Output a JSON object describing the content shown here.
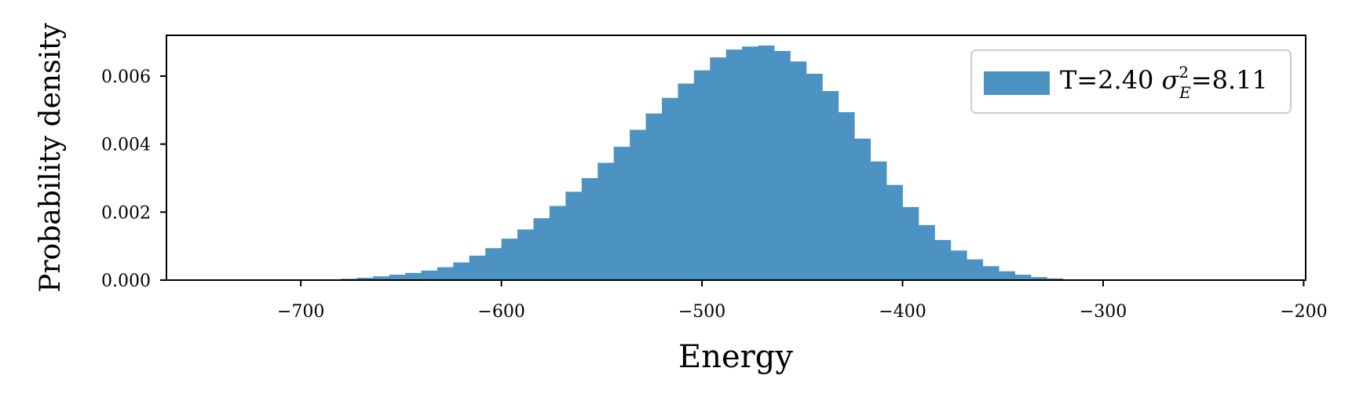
{
  "chart_data": {
    "type": "bar",
    "xlabel": "Energy",
    "ylabel": "Probability density",
    "xlim": [
      -767,
      -199
    ],
    "ylim": [
      0,
      0.0072
    ],
    "xticks": [
      -700,
      -600,
      -500,
      -400,
      -300,
      -200
    ],
    "xtick_labels": [
      "−700",
      "−600",
      "−500",
      "−400",
      "−300",
      "−200"
    ],
    "yticks": [
      0,
      0.002,
      0.004,
      0.006
    ],
    "ytick_labels": [
      "0.000",
      "0.002",
      "0.004",
      "0.006"
    ],
    "bin_width": 8,
    "bin_start": -696,
    "values": [
      1e-05,
      2e-05,
      4e-05,
      7e-05,
      0.00011,
      0.00016,
      0.00021,
      0.00028,
      0.00038,
      0.00052,
      0.00072,
      0.00094,
      0.00122,
      0.00149,
      0.00182,
      0.00218,
      0.0026,
      0.003,
      0.00345,
      0.00392,
      0.00442,
      0.0049,
      0.00536,
      0.00578,
      0.00617,
      0.00655,
      0.00678,
      0.00687,
      0.0069,
      0.00674,
      0.00643,
      0.00607,
      0.00556,
      0.00494,
      0.00416,
      0.00349,
      0.0028,
      0.00215,
      0.00162,
      0.00118,
      0.00087,
      0.00061,
      0.00041,
      0.00026,
      0.00016,
      9e-05,
      5e-05,
      2e-05,
      1e-05
    ],
    "color": "#4c93c3",
    "legend": {
      "label_prefix": "T=2.40 ",
      "sigma": "σ",
      "sup": "2",
      "sub": "E",
      "label_suffix": "=8.11",
      "position": "top-right"
    },
    "grid": false
  }
}
